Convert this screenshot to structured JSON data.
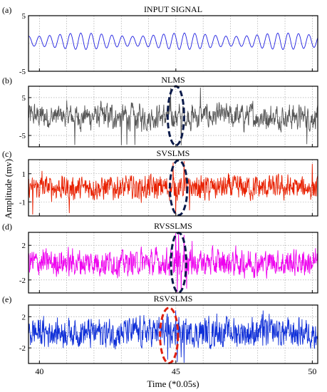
{
  "figure": {
    "ylabel": "Amplitude (mv)",
    "xlabel": "Time (*0.05s)"
  },
  "chart_data": [
    {
      "type": "line",
      "panel": "(a)",
      "title": "INPUT SIGNAL",
      "color": "#1f1fe0",
      "xlim": [
        39.6,
        50.2
      ],
      "ylim": [
        -5,
        5
      ],
      "yticks": [
        5,
        -5
      ],
      "xticks": [
        40,
        45,
        50
      ],
      "series": [
        {
          "style": "sinusoid",
          "amplitude": 1.4,
          "offset": 0.4,
          "period": 0.38
        }
      ],
      "annotations": []
    },
    {
      "type": "line",
      "panel": "(b)",
      "title": "NLMS",
      "color": "#555555",
      "xlim": [
        39.6,
        50.2
      ],
      "ylim": [
        -8,
        8
      ],
      "yticks": [
        5,
        -5
      ],
      "xticks": [
        40,
        45,
        50
      ],
      "series": [
        {
          "style": "noise",
          "amplitude": 2.4,
          "spikes": [
            [
              41.3,
              -7.5
            ],
            [
              43.0,
              -7.6
            ],
            [
              43.2,
              -7.4
            ],
            [
              43.5,
              -7.5
            ],
            [
              44.8,
              7.5
            ],
            [
              45.2,
              -7.6
            ],
            [
              45.9,
              7.6
            ],
            [
              49.8,
              -7.3
            ]
          ]
        }
      ],
      "annotations": [
        {
          "type": "ellipse",
          "center_x": 45.0,
          "center_y": 0.2,
          "rx": 0.3,
          "ry": 7.8,
          "color": "#0a1a4a"
        }
      ]
    },
    {
      "type": "line",
      "panel": "(c)",
      "title": "SVSLMS",
      "color": "#e82000",
      "xlim": [
        39.6,
        50.2
      ],
      "ylim": [
        -2,
        2
      ],
      "yticks": [
        1,
        -1
      ],
      "xticks": [
        40,
        45,
        50
      ],
      "series": [
        {
          "style": "noise",
          "amplitude": 0.5,
          "spikes": [
            [
              39.75,
              -1.9
            ],
            [
              40.1,
              1.2
            ],
            [
              41.1,
              -1.8
            ],
            [
              44.9,
              1.8
            ],
            [
              45.0,
              -1.9
            ],
            [
              45.3,
              1.9
            ],
            [
              45.5,
              -1.6
            ],
            [
              50.0,
              1.7
            ]
          ]
        }
      ],
      "annotations": [
        {
          "type": "ellipse",
          "center_x": 45.1,
          "center_y": 0.0,
          "rx": 0.32,
          "ry": 1.95,
          "color": "#0a1a4a"
        }
      ]
    },
    {
      "type": "line",
      "panel": "(d)",
      "title": "RVSSLMS",
      "color": "#ee00ee",
      "xlim": [
        39.6,
        50.2
      ],
      "ylim": [
        -3.5,
        3.5
      ],
      "yticks": [
        2,
        -2
      ],
      "xticks": [
        40,
        45,
        50
      ],
      "series": [
        {
          "style": "noise",
          "amplitude": 0.9,
          "spikes": [
            [
              45.0,
              3.4
            ],
            [
              45.05,
              -3.4
            ],
            [
              45.1,
              3.4
            ],
            [
              45.2,
              -3.3
            ],
            [
              45.3,
              3.2
            ],
            [
              45.4,
              -3.0
            ],
            [
              45.6,
              2.5
            ]
          ]
        }
      ],
      "annotations": [
        {
          "type": "ellipse",
          "center_x": 45.1,
          "center_y": 0.0,
          "rx": 0.28,
          "ry": 3.45,
          "color": "#0a1a4a"
        }
      ]
    },
    {
      "type": "line",
      "panel": "(e)",
      "title": "RSVSLMS",
      "color": "#1030d8",
      "xlim": [
        39.6,
        50.2
      ],
      "ylim": [
        -4,
        3.5
      ],
      "yticks": [
        2,
        -2
      ],
      "xticks": [
        40,
        45,
        50
      ],
      "series": [
        {
          "style": "noise",
          "amplitude": 1.1,
          "spikes": [
            [
              44.7,
              -3.5
            ],
            [
              45.0,
              2.8
            ],
            [
              45.05,
              -3.8
            ],
            [
              45.2,
              -3.2
            ],
            [
              45.3,
              -3.9
            ],
            [
              46.5,
              2.4
            ],
            [
              48.2,
              2.8
            ]
          ]
        }
      ],
      "annotations": [
        {
          "type": "ellipse",
          "center_x": 44.75,
          "center_y": -0.4,
          "rx": 0.33,
          "ry": 3.55,
          "color": "#e02010"
        }
      ]
    }
  ]
}
